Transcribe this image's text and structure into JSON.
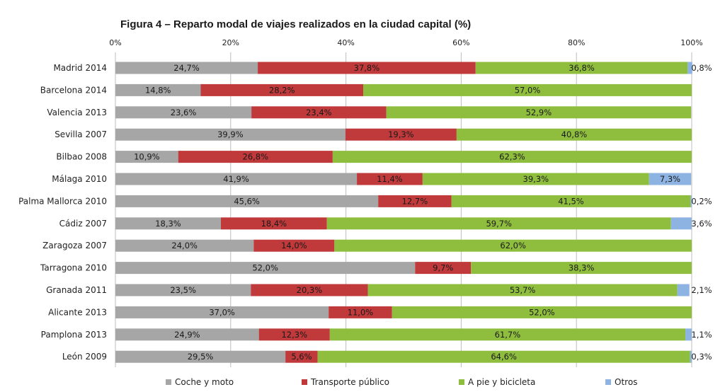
{
  "chart_data": {
    "type": "bar",
    "orientation": "horizontal",
    "stacked": true,
    "title": "Figura 4 – Reparto modal de viajes realizados en la ciudad capital (%)",
    "xlim": [
      0,
      100
    ],
    "ticks": [
      "0%",
      "20%",
      "40%",
      "60%",
      "80%",
      "100%"
    ],
    "tick_values": [
      0,
      20,
      40,
      60,
      80,
      100
    ],
    "grid": true,
    "legend_position": "bottom",
    "categories": [
      "Madrid 2014",
      "Barcelona 2014",
      "Valencia 2013",
      "Sevilla 2007",
      "Bilbao 2008",
      "Málaga 2010",
      "Palma Mallorca 2010",
      "Cádiz 2007",
      "Zaragoza 2007",
      "Tarragona 2010",
      "Granada 2011",
      "Alicante 2013",
      "Pamplona 2013",
      "León 2009"
    ],
    "series": [
      {
        "name": "Coche y moto",
        "color": "#a6a6a6",
        "values": [
          24.7,
          14.8,
          23.6,
          39.9,
          10.9,
          41.9,
          45.6,
          18.3,
          24.0,
          52.0,
          23.5,
          37.0,
          24.9,
          29.5
        ],
        "labels": [
          "24,7%",
          "14,8%",
          "23,6%",
          "39,9%",
          "10,9%",
          "41,9%",
          "45,6%",
          "18,3%",
          "24,0%",
          "52,0%",
          "23,5%",
          "37,0%",
          "24,9%",
          "29,5%"
        ]
      },
      {
        "name": "Transporte público",
        "color": "#c0393b",
        "values": [
          37.8,
          28.2,
          23.4,
          19.3,
          26.8,
          11.4,
          12.7,
          18.4,
          14.0,
          9.7,
          20.3,
          11.0,
          12.3,
          5.6
        ],
        "labels": [
          "37,8%",
          "28,2%",
          "23,4%",
          "19,3%",
          "26,8%",
          "11,4%",
          "12,7%",
          "18,4%",
          "14,0%",
          "9,7%",
          "20,3%",
          "11,0%",
          "12,3%",
          "5,6%"
        ]
      },
      {
        "name": "A pie y bicicleta",
        "color": "#8fbe3f",
        "values": [
          36.8,
          57.0,
          52.9,
          40.8,
          62.3,
          39.3,
          41.5,
          59.7,
          62.0,
          38.3,
          53.7,
          52.0,
          61.7,
          64.6
        ],
        "labels": [
          "36,8%",
          "57,0%",
          "52,9%",
          "40,8%",
          "62,3%",
          "39,3%",
          "41,5%",
          "59,7%",
          "62,0%",
          "38,3%",
          "53,7%",
          "52,0%",
          "61,7%",
          "64,6%"
        ]
      },
      {
        "name": "Otros",
        "color": "#8db3e2",
        "values": [
          0.8,
          0,
          0,
          0,
          0,
          7.3,
          0.2,
          3.6,
          0,
          0,
          2.1,
          0,
          1.1,
          0.3
        ],
        "labels": [
          "0,8%",
          "",
          "",
          "",
          "",
          "7,3%",
          "0,2%",
          "3,6%",
          "",
          "",
          "2,1%",
          "",
          "1,1%",
          "0,3%"
        ]
      }
    ]
  }
}
